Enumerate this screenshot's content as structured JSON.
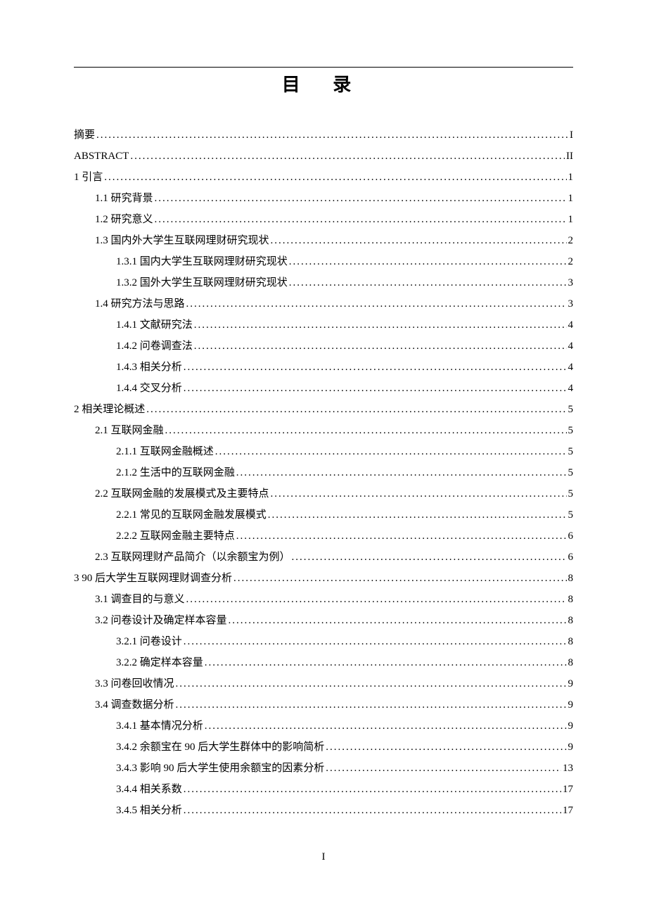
{
  "title": "目  录",
  "page_number_footer": "I",
  "font": {
    "family": "SimSun",
    "title_size_pt": 26,
    "body_size_pt": 15,
    "line_height": 2.0
  },
  "colors": {
    "background": "#ffffff",
    "text": "#000000",
    "rule": "#000000"
  },
  "toc_entries": [
    {
      "level": 0,
      "label": "摘要",
      "page": "I"
    },
    {
      "level": 0,
      "label": "ABSTRACT",
      "page": "II"
    },
    {
      "level": 0,
      "label": "1 引言",
      "page": "1"
    },
    {
      "level": 1,
      "label": "1.1 研究背景",
      "page": "1"
    },
    {
      "level": 1,
      "label": "1.2 研究意义",
      "page": "1"
    },
    {
      "level": 1,
      "label": "1.3 国内外大学生互联网理财研究现状",
      "page": "2"
    },
    {
      "level": 2,
      "label": "1.3.1 国内大学生互联网理财研究现状",
      "page": "2"
    },
    {
      "level": 2,
      "label": "1.3.2 国外大学生互联网理财研究现状",
      "page": "3"
    },
    {
      "level": 1,
      "label": "1.4 研究方法与思路",
      "page": "3"
    },
    {
      "level": 2,
      "label": "1.4.1 文献研究法",
      "page": "4"
    },
    {
      "level": 2,
      "label": "1.4.2 问卷调查法",
      "page": "4"
    },
    {
      "level": 2,
      "label": "1.4.3 相关分析",
      "page": "4"
    },
    {
      "level": 2,
      "label": "1.4.4 交叉分析",
      "page": "4"
    },
    {
      "level": 0,
      "label": "2 相关理论概述",
      "page": "5"
    },
    {
      "level": 1,
      "label": "2.1 互联网金融",
      "page": "5"
    },
    {
      "level": 2,
      "label": "2.1.1 互联网金融概述",
      "page": "5"
    },
    {
      "level": 2,
      "label": "2.1.2 生活中的互联网金融",
      "page": "5"
    },
    {
      "level": 1,
      "label": "2.2 互联网金融的发展模式及主要特点",
      "page": "5"
    },
    {
      "level": 2,
      "label": "2.2.1 常见的互联网金融发展模式",
      "page": "5"
    },
    {
      "level": 2,
      "label": "2.2.2 互联网金融主要特点",
      "page": "6"
    },
    {
      "level": 1,
      "label": "2.3 互联网理财产品简介（以余额宝为例）",
      "page": "6"
    },
    {
      "level": 0,
      "label": "3 90 后大学生互联网理财调查分析",
      "page": "8"
    },
    {
      "level": 1,
      "label": "3.1 调查目的与意义",
      "page": "8"
    },
    {
      "level": 1,
      "label": "3.2 问卷设计及确定样本容量",
      "page": "8"
    },
    {
      "level": 2,
      "label": "3.2.1 问卷设计",
      "page": "8"
    },
    {
      "level": 2,
      "label": "3.2.2 确定样本容量",
      "page": "8"
    },
    {
      "level": 1,
      "label": "3.3 问卷回收情况",
      "page": "9"
    },
    {
      "level": 1,
      "label": "3.4 调查数据分析",
      "page": "9"
    },
    {
      "level": 2,
      "label": "3.4.1 基本情况分析",
      "page": "9"
    },
    {
      "level": 2,
      "label": "3.4.2 余额宝在 90 后大学生群体中的影响简析",
      "page": "9"
    },
    {
      "level": 2,
      "label": "3.4.3 影响 90 后大学生使用余额宝的因素分析",
      "page": "13"
    },
    {
      "level": 2,
      "label": "3.4.4  相关系数",
      "page": "17"
    },
    {
      "level": 2,
      "label": "3.4.5 相关分析",
      "page": "17"
    }
  ]
}
